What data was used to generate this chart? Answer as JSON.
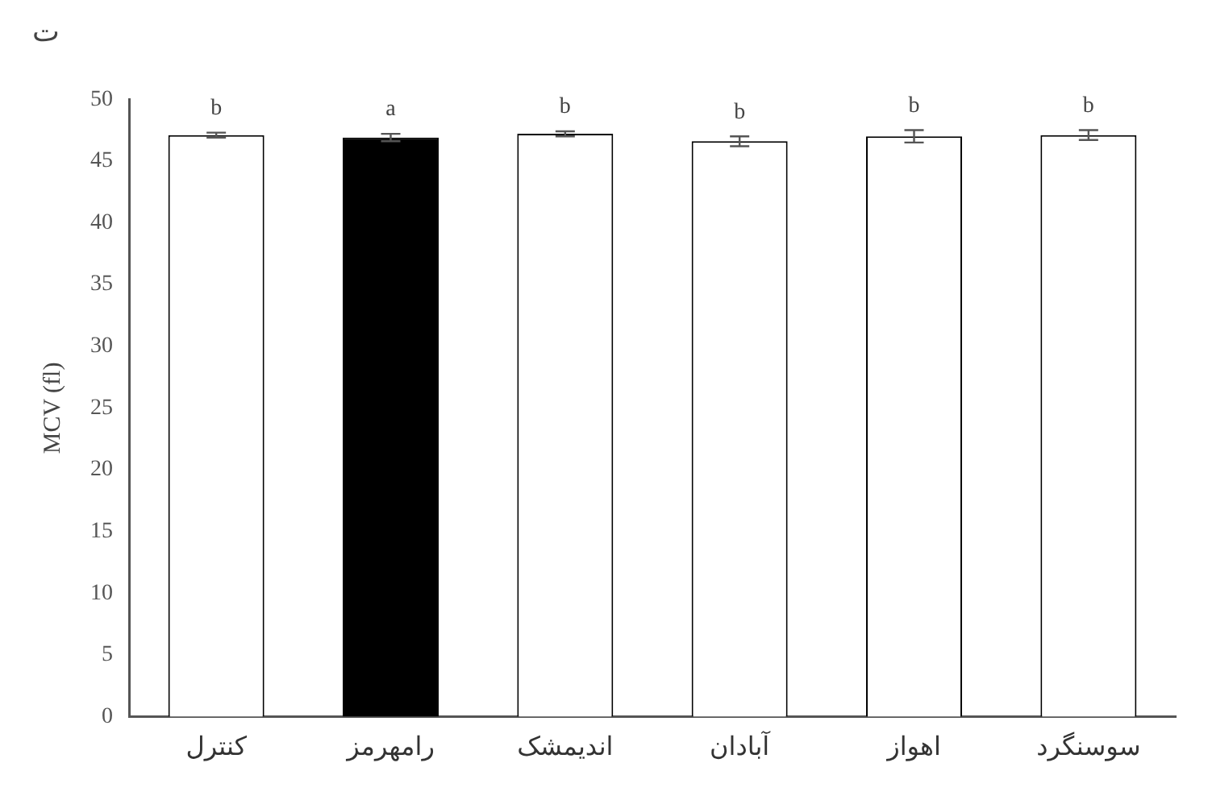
{
  "chart_data": {
    "type": "bar",
    "title": "ت",
    "ylabel": "MCV (fl)",
    "categories": [
      "کنترل",
      "رامهرمز",
      "اندیمشک",
      "آبادان",
      "اهواز",
      "سوسنگرد"
    ],
    "values": [
      47.1,
      46.9,
      47.2,
      46.6,
      47.0,
      47.1
    ],
    "errors": [
      0.2,
      0.3,
      0.2,
      0.4,
      0.5,
      0.4
    ],
    "colors": [
      "#ffffff",
      "#000000",
      "#ffffff",
      "#ffffff",
      "#ffffff",
      "#ffffff"
    ],
    "ylim": [
      0,
      50
    ],
    "yticks": [
      0,
      5,
      10,
      15,
      20,
      25,
      30,
      35,
      40,
      45,
      50
    ],
    "grid": false,
    "legend": false,
    "annotations": [
      {
        "text": "b",
        "x": "کنترل",
        "y": 47.3
      },
      {
        "text": "a",
        "x": "رامهرمز",
        "y": 47.2
      },
      {
        "text": "b",
        "x": "اندیمشک",
        "y": 47.4
      },
      {
        "text": "b",
        "x": "آبادان",
        "y": 47.0
      },
      {
        "text": "b",
        "x": "اهواز",
        "y": 47.5
      },
      {
        "text": "b",
        "x": "سوسنگرد",
        "y": 47.5
      }
    ]
  }
}
